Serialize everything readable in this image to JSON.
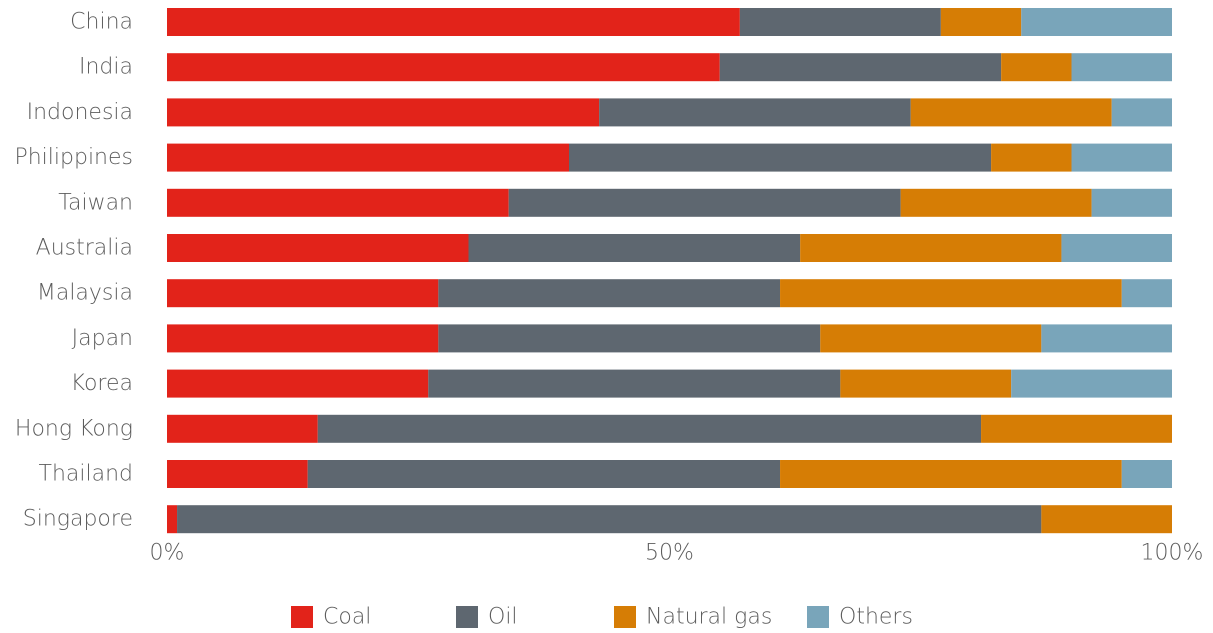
{
  "chart_data": {
    "type": "bar",
    "orientation": "horizontal",
    "stacked": true,
    "title": "",
    "xlabel": "",
    "ylabel": "",
    "xlim": [
      0,
      100
    ],
    "x_ticks": [
      "0%",
      "50%",
      "100%"
    ],
    "grid": false,
    "legend_position": "bottom",
    "categories": [
      "China",
      "India",
      "Indonesia",
      "Philippines",
      "Taiwan",
      "Australia",
      "Malaysia",
      "Japan",
      "Korea",
      "Hong Kong",
      "Thailand",
      "Singapore"
    ],
    "series": [
      {
        "name": "Coal",
        "color": "#e2231a",
        "values": [
          57,
          55,
          43,
          40,
          34,
          30,
          27,
          27,
          26,
          15,
          14,
          1
        ]
      },
      {
        "name": "Oil",
        "color": "#5e6770",
        "values": [
          20,
          28,
          31,
          42,
          39,
          33,
          34,
          38,
          41,
          66,
          47,
          86
        ]
      },
      {
        "name": "Natural gas",
        "color": "#d67d05",
        "values": [
          8,
          7,
          20,
          8,
          19,
          26,
          34,
          22,
          17,
          19,
          34,
          13
        ]
      },
      {
        "name": "Others",
        "color": "#79a5ba",
        "values": [
          15,
          10,
          6,
          10,
          8,
          11,
          5,
          13,
          16,
          0,
          5,
          0
        ]
      }
    ]
  }
}
